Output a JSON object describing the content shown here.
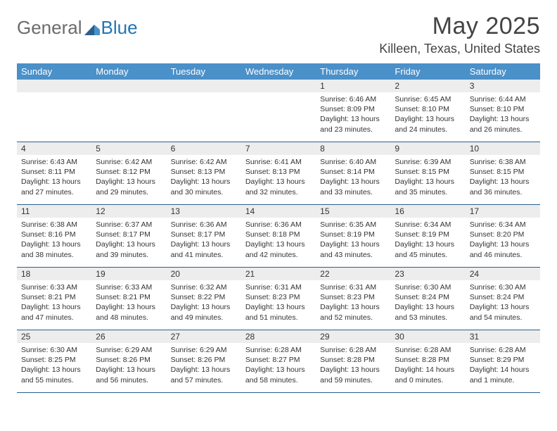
{
  "logo": {
    "text1": "General",
    "text2": "Blue"
  },
  "title": "May 2025",
  "location": "Killeen, Texas, United States",
  "weekday_bg": "#4a90c9",
  "rule_color": "#2b5e8c",
  "daynum_bg": "#ededed",
  "weekdays": [
    "Sunday",
    "Monday",
    "Tuesday",
    "Wednesday",
    "Thursday",
    "Friday",
    "Saturday"
  ],
  "weeks": [
    [
      {
        "num": "",
        "lines": []
      },
      {
        "num": "",
        "lines": []
      },
      {
        "num": "",
        "lines": []
      },
      {
        "num": "",
        "lines": []
      },
      {
        "num": "1",
        "lines": [
          "Sunrise: 6:46 AM",
          "Sunset: 8:09 PM",
          "Daylight: 13 hours and 23 minutes."
        ]
      },
      {
        "num": "2",
        "lines": [
          "Sunrise: 6:45 AM",
          "Sunset: 8:10 PM",
          "Daylight: 13 hours and 24 minutes."
        ]
      },
      {
        "num": "3",
        "lines": [
          "Sunrise: 6:44 AM",
          "Sunset: 8:10 PM",
          "Daylight: 13 hours and 26 minutes."
        ]
      }
    ],
    [
      {
        "num": "4",
        "lines": [
          "Sunrise: 6:43 AM",
          "Sunset: 8:11 PM",
          "Daylight: 13 hours and 27 minutes."
        ]
      },
      {
        "num": "5",
        "lines": [
          "Sunrise: 6:42 AM",
          "Sunset: 8:12 PM",
          "Daylight: 13 hours and 29 minutes."
        ]
      },
      {
        "num": "6",
        "lines": [
          "Sunrise: 6:42 AM",
          "Sunset: 8:13 PM",
          "Daylight: 13 hours and 30 minutes."
        ]
      },
      {
        "num": "7",
        "lines": [
          "Sunrise: 6:41 AM",
          "Sunset: 8:13 PM",
          "Daylight: 13 hours and 32 minutes."
        ]
      },
      {
        "num": "8",
        "lines": [
          "Sunrise: 6:40 AM",
          "Sunset: 8:14 PM",
          "Daylight: 13 hours and 33 minutes."
        ]
      },
      {
        "num": "9",
        "lines": [
          "Sunrise: 6:39 AM",
          "Sunset: 8:15 PM",
          "Daylight: 13 hours and 35 minutes."
        ]
      },
      {
        "num": "10",
        "lines": [
          "Sunrise: 6:38 AM",
          "Sunset: 8:15 PM",
          "Daylight: 13 hours and 36 minutes."
        ]
      }
    ],
    [
      {
        "num": "11",
        "lines": [
          "Sunrise: 6:38 AM",
          "Sunset: 8:16 PM",
          "Daylight: 13 hours and 38 minutes."
        ]
      },
      {
        "num": "12",
        "lines": [
          "Sunrise: 6:37 AM",
          "Sunset: 8:17 PM",
          "Daylight: 13 hours and 39 minutes."
        ]
      },
      {
        "num": "13",
        "lines": [
          "Sunrise: 6:36 AM",
          "Sunset: 8:17 PM",
          "Daylight: 13 hours and 41 minutes."
        ]
      },
      {
        "num": "14",
        "lines": [
          "Sunrise: 6:36 AM",
          "Sunset: 8:18 PM",
          "Daylight: 13 hours and 42 minutes."
        ]
      },
      {
        "num": "15",
        "lines": [
          "Sunrise: 6:35 AM",
          "Sunset: 8:19 PM",
          "Daylight: 13 hours and 43 minutes."
        ]
      },
      {
        "num": "16",
        "lines": [
          "Sunrise: 6:34 AM",
          "Sunset: 8:19 PM",
          "Daylight: 13 hours and 45 minutes."
        ]
      },
      {
        "num": "17",
        "lines": [
          "Sunrise: 6:34 AM",
          "Sunset: 8:20 PM",
          "Daylight: 13 hours and 46 minutes."
        ]
      }
    ],
    [
      {
        "num": "18",
        "lines": [
          "Sunrise: 6:33 AM",
          "Sunset: 8:21 PM",
          "Daylight: 13 hours and 47 minutes."
        ]
      },
      {
        "num": "19",
        "lines": [
          "Sunrise: 6:33 AM",
          "Sunset: 8:21 PM",
          "Daylight: 13 hours and 48 minutes."
        ]
      },
      {
        "num": "20",
        "lines": [
          "Sunrise: 6:32 AM",
          "Sunset: 8:22 PM",
          "Daylight: 13 hours and 49 minutes."
        ]
      },
      {
        "num": "21",
        "lines": [
          "Sunrise: 6:31 AM",
          "Sunset: 8:23 PM",
          "Daylight: 13 hours and 51 minutes."
        ]
      },
      {
        "num": "22",
        "lines": [
          "Sunrise: 6:31 AM",
          "Sunset: 8:23 PM",
          "Daylight: 13 hours and 52 minutes."
        ]
      },
      {
        "num": "23",
        "lines": [
          "Sunrise: 6:30 AM",
          "Sunset: 8:24 PM",
          "Daylight: 13 hours and 53 minutes."
        ]
      },
      {
        "num": "24",
        "lines": [
          "Sunrise: 6:30 AM",
          "Sunset: 8:24 PM",
          "Daylight: 13 hours and 54 minutes."
        ]
      }
    ],
    [
      {
        "num": "25",
        "lines": [
          "Sunrise: 6:30 AM",
          "Sunset: 8:25 PM",
          "Daylight: 13 hours and 55 minutes."
        ]
      },
      {
        "num": "26",
        "lines": [
          "Sunrise: 6:29 AM",
          "Sunset: 8:26 PM",
          "Daylight: 13 hours and 56 minutes."
        ]
      },
      {
        "num": "27",
        "lines": [
          "Sunrise: 6:29 AM",
          "Sunset: 8:26 PM",
          "Daylight: 13 hours and 57 minutes."
        ]
      },
      {
        "num": "28",
        "lines": [
          "Sunrise: 6:28 AM",
          "Sunset: 8:27 PM",
          "Daylight: 13 hours and 58 minutes."
        ]
      },
      {
        "num": "29",
        "lines": [
          "Sunrise: 6:28 AM",
          "Sunset: 8:28 PM",
          "Daylight: 13 hours and 59 minutes."
        ]
      },
      {
        "num": "30",
        "lines": [
          "Sunrise: 6:28 AM",
          "Sunset: 8:28 PM",
          "Daylight: 14 hours and 0 minutes."
        ]
      },
      {
        "num": "31",
        "lines": [
          "Sunrise: 6:28 AM",
          "Sunset: 8:29 PM",
          "Daylight: 14 hours and 1 minute."
        ]
      }
    ]
  ]
}
